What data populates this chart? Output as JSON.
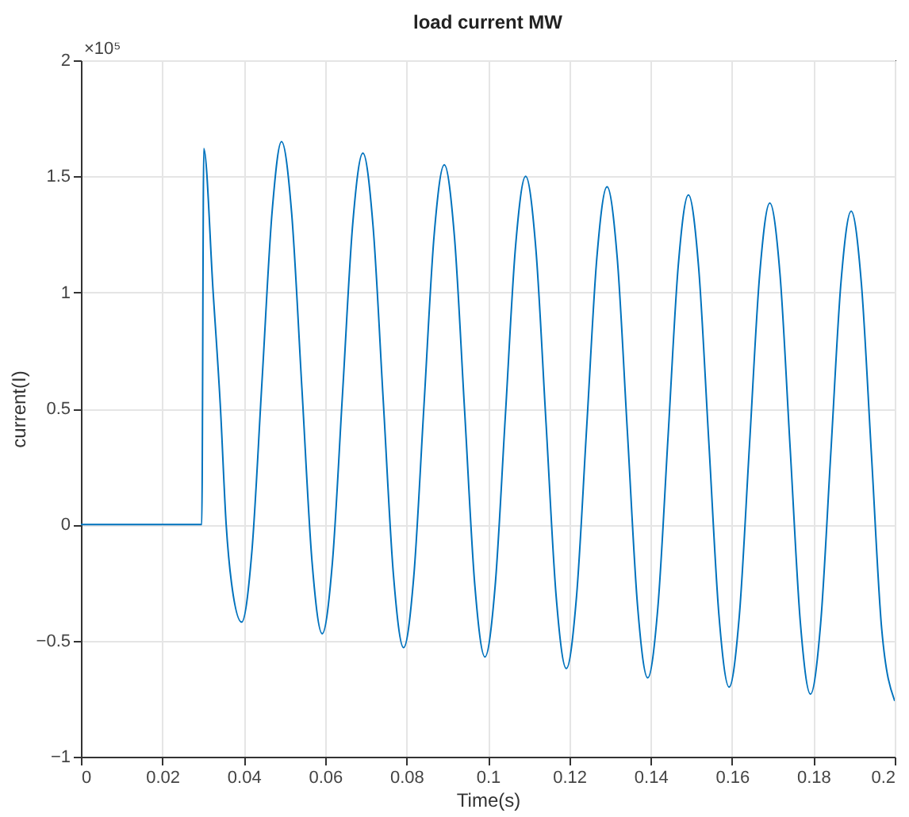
{
  "chart_data": {
    "type": "line",
    "title": "load current MW",
    "xlabel": "Time(s)",
    "ylabel": "current(I)",
    "annotations": [
      "×10⁵"
    ],
    "xlim": [
      0,
      0.2
    ],
    "xticks": [
      0,
      0.02,
      0.04,
      0.06,
      0.08,
      0.1,
      0.12,
      0.14,
      0.16,
      0.18,
      0.2
    ],
    "ylim": [
      -1,
      2
    ],
    "yticks": [
      -1,
      -0.5,
      0,
      0.5,
      1,
      1.5,
      2
    ],
    "grid": true,
    "line_style": "solid",
    "marker": "none",
    "series": [
      {
        "color": "#0072bd",
        "x": [
          0,
          0.0297,
          0.0302,
          0.0325,
          0.0343,
          0.0357,
          0.037,
          0.0395,
          0.042,
          0.0445,
          0.047,
          0.0493,
          0.0518,
          0.0543,
          0.0568,
          0.0593,
          0.0618,
          0.0643,
          0.0668,
          0.0693,
          0.0718,
          0.0743,
          0.0768,
          0.0793,
          0.0818,
          0.0843,
          0.0868,
          0.0893,
          0.0918,
          0.0943,
          0.0968,
          0.0993,
          0.1018,
          0.1043,
          0.1068,
          0.1093,
          0.1118,
          0.1143,
          0.1168,
          0.1193,
          0.1218,
          0.1243,
          0.1268,
          0.1293,
          0.1318,
          0.1343,
          0.1368,
          0.1393,
          0.1418,
          0.1443,
          0.1468,
          0.1493,
          0.1518,
          0.1543,
          0.1568,
          0.1593,
          0.1618,
          0.1643,
          0.1668,
          0.1693,
          0.1718,
          0.1743,
          0.1768,
          0.1793,
          0.1818,
          0.1843,
          0.1868,
          0.1893,
          0.1918,
          0.1943,
          0.1968,
          0.2
        ],
        "values": [
          0,
          0,
          1.62,
          1.0,
          0.5,
          0,
          -0.25,
          -0.42,
          -0.12,
          0.615,
          1.35,
          1.65,
          1.34,
          0.59,
          -0.16,
          -0.47,
          -0.165,
          0.565,
          1.295,
          1.6,
          1.285,
          0.535,
          -0.215,
          -0.53,
          -0.225,
          0.51,
          1.245,
          1.55,
          1.24,
          0.49,
          -0.26,
          -0.57,
          -0.265,
          0.465,
          1.195,
          1.5,
          1.19,
          0.44,
          -0.31,
          -0.62,
          -0.31,
          0.42,
          1.15,
          1.455,
          1.15,
          0.4,
          -0.35,
          -0.66,
          -0.355,
          0.38,
          1.115,
          1.42,
          1.11,
          0.36,
          -0.39,
          -0.7,
          -0.395,
          0.34,
          1.075,
          1.385,
          1.08,
          0.33,
          -0.42,
          -0.73,
          -0.425,
          0.31,
          1.045,
          1.35,
          1.04,
          0.295,
          -0.45,
          -0.76
        ]
      }
    ]
  }
}
